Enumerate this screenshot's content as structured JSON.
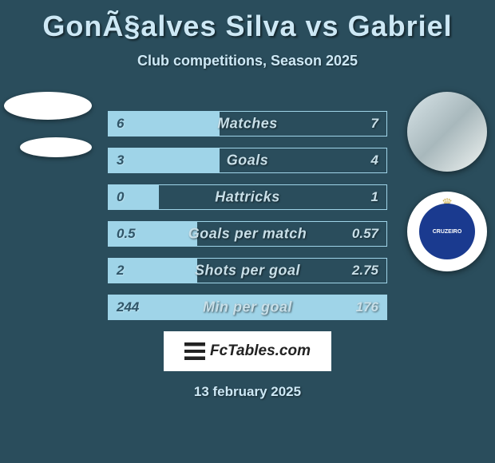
{
  "title": "GonÃ§alves Silva vs Gabriel",
  "subtitle": "Club competitions, Season 2025",
  "crest_text": "CRUZEIRO",
  "stats": [
    {
      "label": "Matches",
      "left_val": "6",
      "right_val": "7",
      "left_pct": 40,
      "right_pct": 0
    },
    {
      "label": "Goals",
      "left_val": "3",
      "right_val": "4",
      "left_pct": 40,
      "right_pct": 0
    },
    {
      "label": "Hattricks",
      "left_val": "0",
      "right_val": "1",
      "left_pct": 18,
      "right_pct": 0
    },
    {
      "label": "Goals per match",
      "left_val": "0.5",
      "right_val": "0.57",
      "left_pct": 32,
      "right_pct": 0
    },
    {
      "label": "Shots per goal",
      "left_val": "2",
      "right_val": "2.75",
      "left_pct": 32,
      "right_pct": 0
    },
    {
      "label": "Min per goal",
      "left_val": "244",
      "right_val": "176",
      "left_pct": 100,
      "right_pct": 0
    }
  ],
  "branding": "FcTables.com",
  "date": "13 february 2025",
  "colors": {
    "bg": "#2a4d5c",
    "bar_left": "#9fd4e8",
    "bar_right": "#6fa8c2",
    "text_light": "#cde8f5",
    "text_dark": "#305568",
    "crest_blue": "#1a3a8f"
  }
}
